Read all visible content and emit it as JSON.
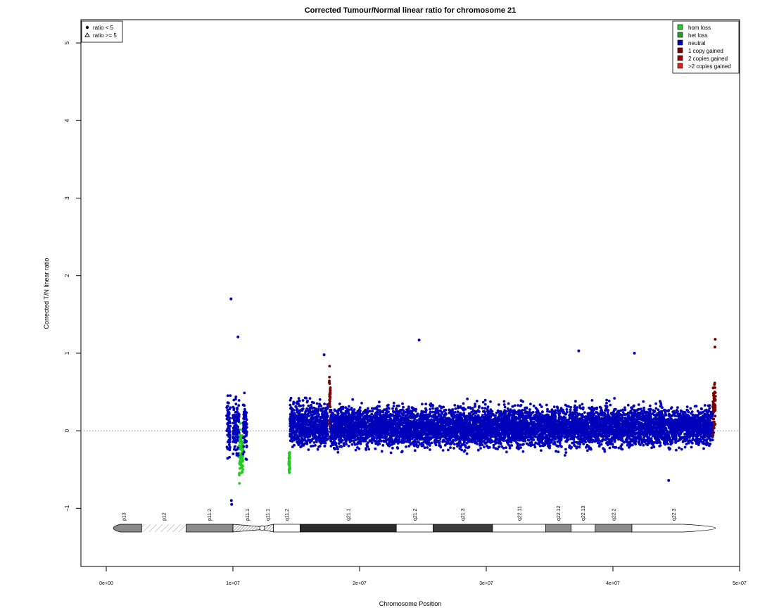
{
  "chart_data": {
    "type": "scatter",
    "title": "Corrected Tumour/Normal linear ratio for chromosome  21",
    "xlabel": "Chromosome Position",
    "ylabel": "Corrected T/N linear ratio",
    "xlim": [
      -2000000,
      50000000
    ],
    "ylim": [
      -1.75,
      5.3
    ],
    "x_ticks": [
      0,
      10000000,
      20000000,
      30000000,
      40000000,
      50000000
    ],
    "x_tick_labels": [
      "0e+00",
      "1e+07",
      "2e+07",
      "3e+07",
      "4e+07",
      "5e+07"
    ],
    "y_ticks": [
      -1,
      0,
      1,
      2,
      3,
      4,
      5
    ],
    "y_tick_labels": [
      "−1",
      "0",
      "1",
      "2",
      "3",
      "4",
      "5"
    ],
    "reference_line": 0,
    "shape_legend": {
      "position": "top-left",
      "entries": [
        {
          "symbol": "dot",
          "label": "ratio < 5"
        },
        {
          "symbol": "triangle",
          "label": "ratio >= 5"
        }
      ]
    },
    "color_legend": {
      "position": "top-right",
      "entries": [
        {
          "label": "hom loss",
          "color": "#22cc22"
        },
        {
          "label": "het loss",
          "color": "#1fa01f"
        },
        {
          "label": "neutral",
          "color": "#0000bb"
        },
        {
          "label": "1 copy gained",
          "color": "#7a0000"
        },
        {
          "label": "2 copies gained",
          "color": "#a00000"
        },
        {
          "label": ">2 copies gained",
          "color": "#dd2222"
        }
      ]
    },
    "segments": [
      {
        "state": "neutral",
        "x_start": 9500000,
        "x_end": 9800000,
        "center": 0.05,
        "spread": 0.32
      },
      {
        "state": "neutral",
        "x_start": 10000000,
        "x_end": 10500000,
        "center": 0.05,
        "spread": 0.3
      },
      {
        "state": "hom loss",
        "x_start": 10500000,
        "x_end": 10800000,
        "center": -0.28,
        "spread": 0.32
      },
      {
        "state": "neutral",
        "x_start": 10800000,
        "x_end": 11100000,
        "center": 0.05,
        "spread": 0.3
      },
      {
        "state": "hom loss",
        "x_start": 14400000,
        "x_end": 14500000,
        "center": -0.4,
        "spread": 0.12
      },
      {
        "state": "neutral",
        "x_start": 14500000,
        "x_end": 17500000,
        "center": 0.08,
        "spread": 0.25
      },
      {
        "state": "1 copy gained",
        "x_start": 17600000,
        "x_end": 17700000,
        "center": 0.35,
        "spread": 0.3
      },
      {
        "state": "neutral",
        "x_start": 17700000,
        "x_end": 47900000,
        "center": 0.05,
        "spread": 0.22
      },
      {
        "state": "1 copy gained",
        "x_start": 47900000,
        "x_end": 48100000,
        "center": 0.3,
        "spread": 0.3
      }
    ],
    "outliers": [
      {
        "x": 9850000,
        "y": 1.7,
        "state": "neutral"
      },
      {
        "x": 10400000,
        "y": 1.21,
        "state": "neutral"
      },
      {
        "x": 24700000,
        "y": 1.17,
        "state": "neutral"
      },
      {
        "x": 9900000,
        "y": -0.95,
        "state": "neutral"
      },
      {
        "x": 9880000,
        "y": -0.9,
        "state": "neutral"
      },
      {
        "x": 44400000,
        "y": -0.64,
        "state": "neutral"
      },
      {
        "x": 48080000,
        "y": 1.18,
        "state": "1 copy gained"
      },
      {
        "x": 48050000,
        "y": 1.08,
        "state": "1 copy gained"
      },
      {
        "x": 37300000,
        "y": 1.03,
        "state": "neutral"
      },
      {
        "x": 41700000,
        "y": 1.0,
        "state": "neutral"
      },
      {
        "x": 17200000,
        "y": 0.98,
        "state": "neutral"
      }
    ],
    "ideogram": {
      "bands": [
        {
          "name": "p13",
          "start": 0,
          "end": 2800000,
          "stain": "gvar"
        },
        {
          "name": "p12",
          "start": 2800000,
          "end": 6300000,
          "stain": "stalk"
        },
        {
          "name": "p11.2",
          "start": 6300000,
          "end": 10000000,
          "stain": "gpos50"
        },
        {
          "name": "p11.1",
          "start": 10000000,
          "end": 12300000,
          "stain": "acen"
        },
        {
          "name": "q11.1",
          "start": 12300000,
          "end": 13200000,
          "stain": "acen"
        },
        {
          "name": "q11.2",
          "start": 13200000,
          "end": 15300000,
          "stain": "gneg"
        },
        {
          "name": "q21.1",
          "start": 15300000,
          "end": 22900000,
          "stain": "gpos100"
        },
        {
          "name": "q21.2",
          "start": 22900000,
          "end": 25800000,
          "stain": "gneg"
        },
        {
          "name": "q21.3",
          "start": 25800000,
          "end": 30500000,
          "stain": "gpos75"
        },
        {
          "name": "q22.11",
          "start": 30500000,
          "end": 34700000,
          "stain": "gneg"
        },
        {
          "name": "q22.12",
          "start": 34700000,
          "end": 36700000,
          "stain": "gpos50"
        },
        {
          "name": "q22.13",
          "start": 36700000,
          "end": 38600000,
          "stain": "gneg"
        },
        {
          "name": "q22.2",
          "start": 38600000,
          "end": 41500000,
          "stain": "gpos50"
        },
        {
          "name": "q22.3",
          "start": 41500000,
          "end": 48100000,
          "stain": "gneg"
        }
      ]
    }
  }
}
